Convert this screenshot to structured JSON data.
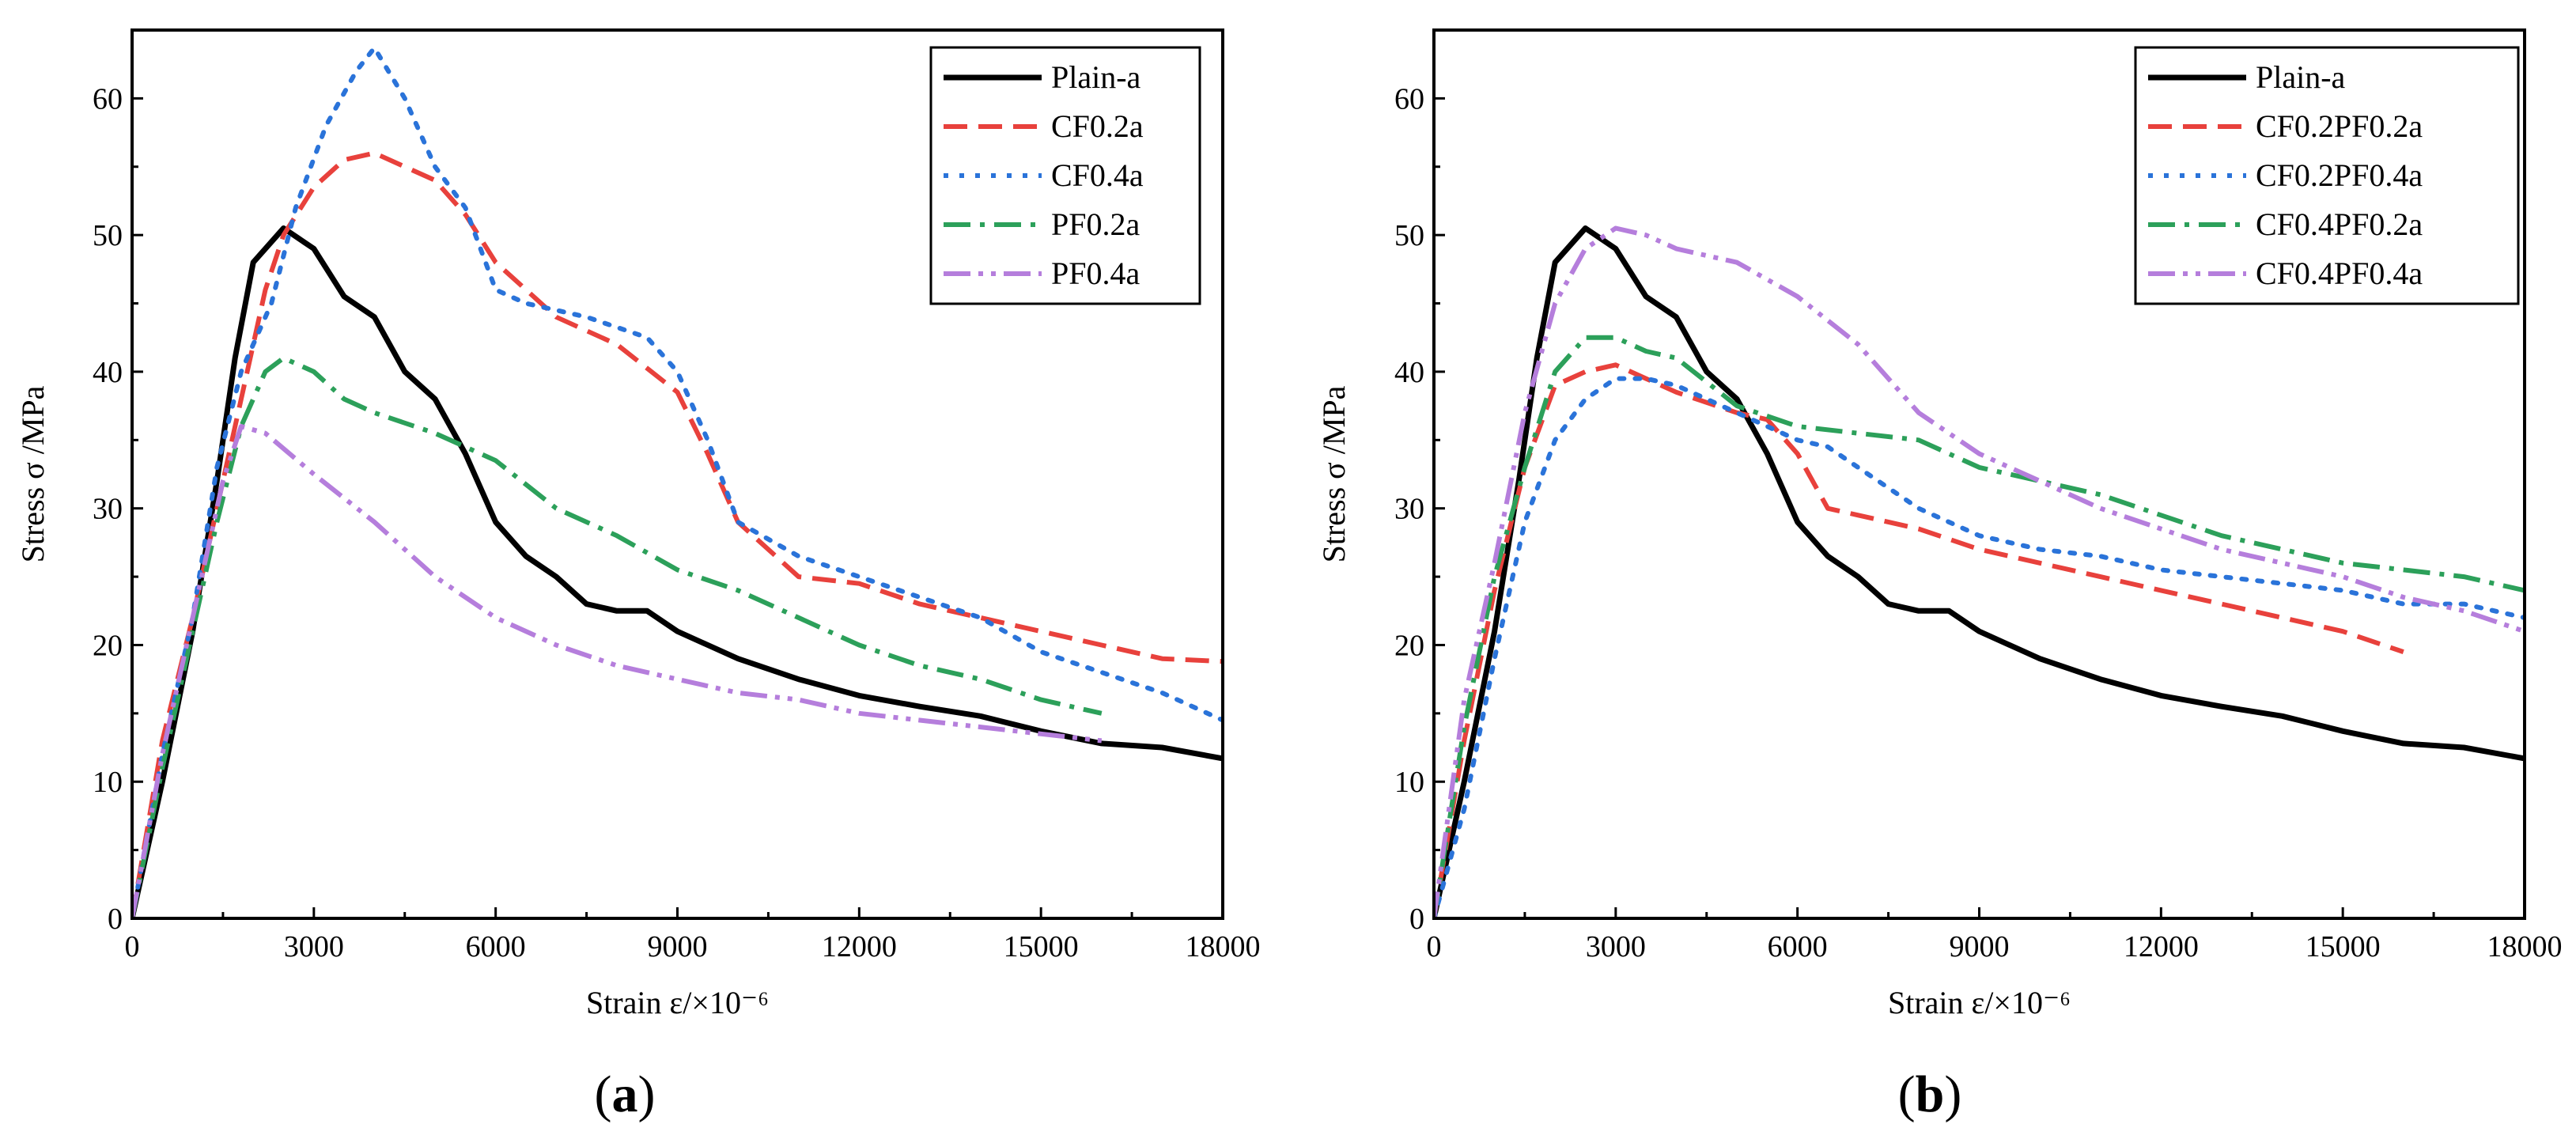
{
  "chart_data": [
    {
      "type": "line",
      "panel_label": "a",
      "xlabel": "Strain ε/×10⁻⁶",
      "ylabel": "Stress σ /MPa",
      "xlim": [
        0,
        18000
      ],
      "ylim": [
        0,
        65
      ],
      "xticks": [
        "0",
        "3000",
        "6000",
        "9000",
        "12000",
        "15000",
        "18000"
      ],
      "yticks": [
        "0",
        "10",
        "20",
        "30",
        "40",
        "50",
        "60"
      ],
      "legend_position": "top-right",
      "grid": false,
      "series": [
        {
          "name": "Plain-a",
          "color": "#000000",
          "dash": "solid",
          "points": [
            [
              0,
              0
            ],
            [
              500,
              10
            ],
            [
              1000,
              21
            ],
            [
              1400,
              32
            ],
            [
              1700,
              41
            ],
            [
              2000,
              48
            ],
            [
              2500,
              50.5
            ],
            [
              3000,
              49
            ],
            [
              3500,
              45.5
            ],
            [
              4000,
              44
            ],
            [
              4500,
              40
            ],
            [
              5000,
              38
            ],
            [
              5500,
              34
            ],
            [
              6000,
              29
            ],
            [
              6500,
              26.5
            ],
            [
              7000,
              25
            ],
            [
              7500,
              23
            ],
            [
              8000,
              22.5
            ],
            [
              8500,
              22.5
            ],
            [
              9000,
              21
            ],
            [
              10000,
              19
            ],
            [
              11000,
              17.5
            ],
            [
              12000,
              16.3
            ],
            [
              13000,
              15.5
            ],
            [
              14000,
              14.8
            ],
            [
              15000,
              13.7
            ],
            [
              16000,
              12.8
            ],
            [
              17000,
              12.5
            ],
            [
              18000,
              11.7
            ]
          ]
        },
        {
          "name": "CF0.2a",
          "color": "#e8413c",
          "dash": "dash",
          "points": [
            [
              0,
              0
            ],
            [
              500,
              13
            ],
            [
              1000,
              22
            ],
            [
              1500,
              32
            ],
            [
              1900,
              40
            ],
            [
              2200,
              46
            ],
            [
              2500,
              50
            ],
            [
              3000,
              53.5
            ],
            [
              3500,
              55.5
            ],
            [
              4000,
              56
            ],
            [
              4500,
              55
            ],
            [
              5000,
              54
            ],
            [
              5500,
              51.5
            ],
            [
              6000,
              48
            ],
            [
              7000,
              44
            ],
            [
              8000,
              42
            ],
            [
              9000,
              38.5
            ],
            [
              9500,
              34
            ],
            [
              10000,
              29
            ],
            [
              11000,
              25
            ],
            [
              12000,
              24.5
            ],
            [
              13000,
              23
            ],
            [
              14000,
              22
            ],
            [
              15000,
              21
            ],
            [
              16000,
              20
            ],
            [
              17000,
              19
            ],
            [
              18000,
              18.8
            ]
          ]
        },
        {
          "name": "CF0.4a",
          "color": "#2a73d9",
          "dash": "dot",
          "points": [
            [
              0,
              0
            ],
            [
              500,
              12
            ],
            [
              1000,
              22
            ],
            [
              1400,
              33
            ],
            [
              1800,
              40
            ],
            [
              2000,
              42
            ],
            [
              2300,
              45
            ],
            [
              2700,
              52
            ],
            [
              3200,
              58
            ],
            [
              3700,
              62
            ],
            [
              4000,
              63.7
            ],
            [
              4500,
              60
            ],
            [
              5000,
              55
            ],
            [
              5500,
              52
            ],
            [
              6000,
              46
            ],
            [
              6500,
              45
            ],
            [
              7500,
              44
            ],
            [
              8500,
              42.5
            ],
            [
              9000,
              40
            ],
            [
              9500,
              35
            ],
            [
              10000,
              29
            ],
            [
              11000,
              26.5
            ],
            [
              12000,
              25
            ],
            [
              13000,
              23.5
            ],
            [
              14000,
              22
            ],
            [
              15000,
              19.5
            ],
            [
              16000,
              18
            ],
            [
              17000,
              16.5
            ],
            [
              18000,
              14.5
            ]
          ]
        },
        {
          "name": "PF0.2a",
          "color": "#2ca05a",
          "dash": "dashdot",
          "points": [
            [
              0,
              0
            ],
            [
              500,
              11
            ],
            [
              1000,
              21
            ],
            [
              1400,
              29
            ],
            [
              1800,
              36
            ],
            [
              2200,
              40
            ],
            [
              2500,
              41
            ],
            [
              3000,
              40
            ],
            [
              3500,
              38
            ],
            [
              4000,
              37
            ],
            [
              5000,
              35.5
            ],
            [
              6000,
              33.5
            ],
            [
              7000,
              30
            ],
            [
              8000,
              28
            ],
            [
              9000,
              25.5
            ],
            [
              10000,
              24
            ],
            [
              11000,
              22
            ],
            [
              12000,
              20
            ],
            [
              13000,
              18.5
            ],
            [
              14000,
              17.5
            ],
            [
              15000,
              16
            ],
            [
              16000,
              15
            ]
          ]
        },
        {
          "name": "PF0.4a",
          "color": "#b57edc",
          "dash": "dashdotdot",
          "points": [
            [
              0,
              0
            ],
            [
              500,
              12
            ],
            [
              1000,
              22
            ],
            [
              1500,
              32
            ],
            [
              1800,
              36
            ],
            [
              2200,
              35.5
            ],
            [
              3000,
              32.5
            ],
            [
              4000,
              29
            ],
            [
              5000,
              25
            ],
            [
              6000,
              22
            ],
            [
              7000,
              20
            ],
            [
              8000,
              18.5
            ],
            [
              9000,
              17.5
            ],
            [
              10000,
              16.5
            ],
            [
              11000,
              16
            ],
            [
              12000,
              15
            ],
            [
              13000,
              14.5
            ],
            [
              14000,
              14
            ],
            [
              15000,
              13.5
            ],
            [
              16000,
              13
            ]
          ]
        }
      ]
    },
    {
      "type": "line",
      "panel_label": "b",
      "xlabel": "Strain ε/×10⁻⁶",
      "ylabel": "Stress σ /MPa",
      "xlim": [
        0,
        18000
      ],
      "ylim": [
        0,
        65
      ],
      "xticks": [
        "0",
        "3000",
        "6000",
        "9000",
        "12000",
        "15000",
        "18000"
      ],
      "yticks": [
        "0",
        "10",
        "20",
        "30",
        "40",
        "50",
        "60"
      ],
      "legend_position": "top-right",
      "grid": false,
      "series": [
        {
          "name": "Plain-a",
          "color": "#000000",
          "dash": "solid",
          "points": [
            [
              0,
              0
            ],
            [
              500,
              10
            ],
            [
              1000,
              21
            ],
            [
              1400,
              32
            ],
            [
              1700,
              41
            ],
            [
              2000,
              48
            ],
            [
              2500,
              50.5
            ],
            [
              3000,
              49
            ],
            [
              3500,
              45.5
            ],
            [
              4000,
              44
            ],
            [
              4500,
              40
            ],
            [
              5000,
              38
            ],
            [
              5500,
              34
            ],
            [
              6000,
              29
            ],
            [
              6500,
              26.5
            ],
            [
              7000,
              25
            ],
            [
              7500,
              23
            ],
            [
              8000,
              22.5
            ],
            [
              8500,
              22.5
            ],
            [
              9000,
              21
            ],
            [
              10000,
              19
            ],
            [
              11000,
              17.5
            ],
            [
              12000,
              16.3
            ],
            [
              13000,
              15.5
            ],
            [
              14000,
              14.8
            ],
            [
              15000,
              13.7
            ],
            [
              16000,
              12.8
            ],
            [
              17000,
              12.5
            ],
            [
              18000,
              11.7
            ]
          ]
        },
        {
          "name": "CF0.2PF0.2a",
          "color": "#e8413c",
          "dash": "dash",
          "points": [
            [
              0,
              0
            ],
            [
              500,
              13
            ],
            [
              1000,
              24
            ],
            [
              1500,
              33
            ],
            [
              2000,
              39
            ],
            [
              2500,
              40
            ],
            [
              3000,
              40.5
            ],
            [
              3500,
              39.5
            ],
            [
              4000,
              38.5
            ],
            [
              5000,
              37
            ],
            [
              5500,
              36.5
            ],
            [
              6000,
              34
            ],
            [
              6500,
              30
            ],
            [
              7000,
              29.5
            ],
            [
              8000,
              28.5
            ],
            [
              9000,
              27
            ],
            [
              10000,
              26
            ],
            [
              11000,
              25
            ],
            [
              12000,
              24
            ],
            [
              13000,
              23
            ],
            [
              14000,
              22
            ],
            [
              15000,
              21
            ],
            [
              16000,
              19.5
            ]
          ]
        },
        {
          "name": "CF0.2PF0.4a",
          "color": "#2a73d9",
          "dash": "dot",
          "points": [
            [
              0,
              0
            ],
            [
              500,
              8
            ],
            [
              1000,
              19
            ],
            [
              1500,
              29
            ],
            [
              2000,
              35
            ],
            [
              2500,
              38
            ],
            [
              3000,
              39.5
            ],
            [
              3500,
              39.5
            ],
            [
              4000,
              39
            ],
            [
              5000,
              37
            ],
            [
              6000,
              35
            ],
            [
              6500,
              34.5
            ],
            [
              7000,
              33
            ],
            [
              8000,
              30
            ],
            [
              9000,
              28
            ],
            [
              10000,
              27
            ],
            [
              11000,
              26.5
            ],
            [
              12000,
              25.5
            ],
            [
              13000,
              25
            ],
            [
              14000,
              24.5
            ],
            [
              15000,
              24
            ],
            [
              16000,
              23
            ],
            [
              17000,
              23
            ],
            [
              18000,
              22
            ]
          ]
        },
        {
          "name": "CF0.4PF0.2a",
          "color": "#2ca05a",
          "dash": "dashdot",
          "points": [
            [
              0,
              0
            ],
            [
              500,
              14
            ],
            [
              1000,
              25
            ],
            [
              1500,
              33
            ],
            [
              2000,
              40
            ],
            [
              2500,
              42.5
            ],
            [
              3000,
              42.5
            ],
            [
              3500,
              41.5
            ],
            [
              4000,
              41
            ],
            [
              5000,
              37.5
            ],
            [
              6000,
              36
            ],
            [
              7000,
              35.5
            ],
            [
              8000,
              35
            ],
            [
              9000,
              33
            ],
            [
              10000,
              32
            ],
            [
              11000,
              31
            ],
            [
              12000,
              29.5
            ],
            [
              13000,
              28
            ],
            [
              14000,
              27
            ],
            [
              15000,
              26
            ],
            [
              16000,
              25.5
            ],
            [
              17000,
              25
            ],
            [
              18000,
              24
            ]
          ]
        },
        {
          "name": "CF0.4PF0.4a",
          "color": "#b57edc",
          "dash": "dashdotdot",
          "points": [
            [
              0,
              0
            ],
            [
              500,
              16
            ],
            [
              1000,
              26
            ],
            [
              1500,
              37
            ],
            [
              2000,
              45
            ],
            [
              2500,
              49
            ],
            [
              3000,
              50.5
            ],
            [
              3500,
              50
            ],
            [
              4000,
              49
            ],
            [
              4500,
              48.5
            ],
            [
              5000,
              48
            ],
            [
              6000,
              45.5
            ],
            [
              7000,
              42
            ],
            [
              8000,
              37
            ],
            [
              9000,
              34
            ],
            [
              10000,
              32
            ],
            [
              11000,
              30
            ],
            [
              12000,
              28.5
            ],
            [
              13000,
              27
            ],
            [
              14000,
              26
            ],
            [
              15000,
              25
            ],
            [
              16000,
              23.5
            ],
            [
              17000,
              22.5
            ],
            [
              18000,
              21
            ]
          ]
        }
      ]
    }
  ]
}
